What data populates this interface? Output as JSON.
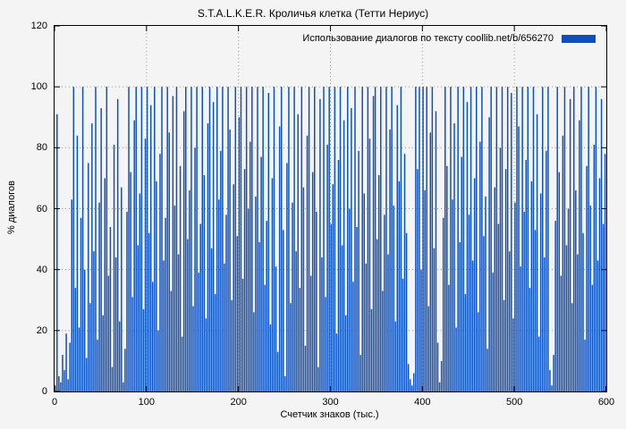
{
  "colors": {
    "background": "#f4f4f4",
    "bar": "#0b50be",
    "grid": "#9a9a9a",
    "frame": "#000000"
  },
  "chart_data": {
    "type": "bar",
    "title": "S.T.A.L.K.E.R. Кроличья клетка (Тетти Нериус)",
    "legend": "Использование диалогов по тексту coollib.net/b/656270",
    "legend_position": "top-right",
    "xlabel": "Счетчик знаков (тыс.)",
    "ylabel": "% диалогов",
    "xlim": [
      0,
      600
    ],
    "ylim": [
      0,
      120
    ],
    "xticks": [
      0,
      100,
      200,
      300,
      400,
      500,
      600
    ],
    "yticks": [
      0,
      20,
      40,
      60,
      80,
      100,
      120
    ],
    "grid": true,
    "x_step": 2,
    "values": [
      2,
      91,
      5,
      3,
      12,
      7,
      19,
      4,
      16,
      63,
      100,
      34,
      84,
      21,
      57,
      100,
      40,
      11,
      75,
      29,
      88,
      46,
      100,
      17,
      62,
      93,
      25,
      70,
      100,
      38,
      54,
      8,
      81,
      44,
      96,
      23,
      67,
      3,
      14,
      59,
      100,
      72,
      31,
      89,
      100,
      48,
      65,
      100,
      27,
      83,
      100,
      52,
      94,
      36,
      100,
      69,
      20,
      78,
      100,
      43,
      57,
      100,
      85,
      33,
      97,
      61,
      100,
      45,
      74,
      18,
      92,
      100,
      50,
      66,
      100,
      28,
      80,
      100,
      39,
      55,
      100,
      71,
      24,
      88,
      100,
      47,
      95,
      32,
      100,
      63,
      79,
      100,
      42,
      58,
      100,
      86,
      30,
      68,
      100,
      51,
      90,
      100,
      37,
      73,
      100,
      60,
      82,
      100,
      26,
      64,
      100,
      49,
      77,
      100,
      35,
      56,
      98,
      22,
      70,
      100,
      41,
      13,
      87,
      100,
      53,
      5,
      75,
      100,
      29,
      62,
      100,
      46,
      91,
      34,
      100,
      67,
      15,
      84,
      100,
      38,
      72,
      100,
      59,
      8,
      96,
      44,
      100,
      31,
      81,
      100,
      55,
      68,
      100,
      19,
      76,
      100,
      48,
      89,
      25,
      100,
      60,
      93,
      36,
      100,
      54,
      79,
      12,
      100,
      65,
      42,
      100,
      83,
      27,
      97,
      100,
      50,
      71,
      100,
      33,
      58,
      100,
      45,
      86,
      100,
      61,
      23,
      94,
      69,
      100,
      37,
      78,
      52,
      9,
      4,
      2,
      6,
      100,
      73,
      100,
      40,
      100,
      66,
      100,
      28,
      85,
      100,
      47,
      92,
      16,
      3,
      10,
      57,
      100,
      74,
      35,
      100,
      63,
      88,
      21,
      100,
      49,
      77,
      100,
      32,
      95,
      58,
      100,
      43,
      70,
      100,
      26,
      82,
      100,
      51,
      64,
      14,
      90,
      100,
      39,
      67,
      100,
      55,
      80,
      100,
      30,
      73,
      100,
      46,
      98,
      24,
      62,
      100,
      87,
      41,
      100,
      59,
      76,
      100,
      34,
      69,
      100,
      53,
      91,
      18,
      65,
      100,
      44,
      79,
      100,
      7,
      2,
      12,
      56,
      100,
      72,
      38,
      84,
      100,
      48,
      60,
      96,
      29,
      100,
      66,
      45,
      89,
      100,
      52,
      17,
      74,
      100,
      61,
      35,
      81,
      100,
      43,
      70,
      96,
      55,
      78
    ]
  }
}
